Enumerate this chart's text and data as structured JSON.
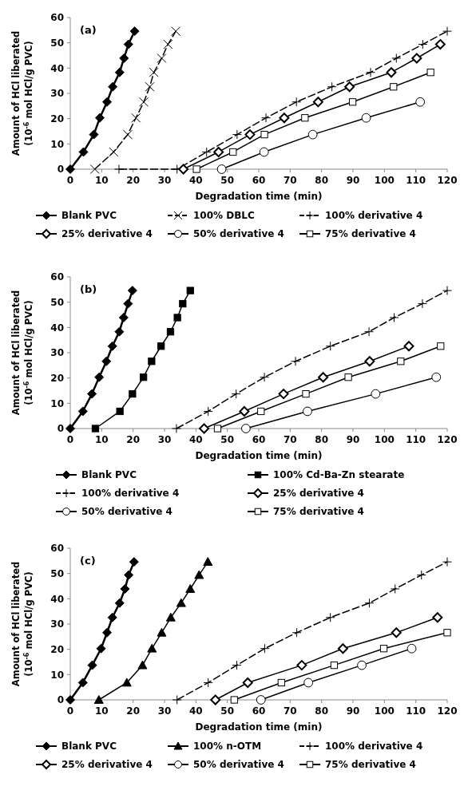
{
  "chart_data": [
    {
      "type": "line",
      "title": "(a)",
      "xlabel": "Degradation time (min)",
      "ylabel": "Amount of HCl liberated (10$^{-6}$ mol HCl/g PVC)",
      "xlim": [
        0,
        120
      ],
      "xticks": [
        0,
        10,
        20,
        30,
        40,
        50,
        60,
        70,
        80,
        90,
        100,
        110,
        120
      ],
      "ylim": [
        0,
        60
      ],
      "yticks": [
        0,
        10,
        20,
        30,
        40,
        50,
        60
      ],
      "legend": "bottom",
      "grid": false,
      "series": [
        {
          "name": "Blank PVC",
          "color": "#000000",
          "marker": "diamond",
          "line_style": "solid",
          "x": [
            0,
            4.2,
            7.5,
            9.4,
            11.7,
            13.5,
            15.7,
            17.1,
            18.5,
            20.5
          ],
          "values": [
            0,
            6.8,
            13.7,
            20.3,
            26.6,
            32.6,
            38.3,
            43.9,
            49.4,
            54.6
          ]
        },
        {
          "name": "100% DBLC",
          "color": "#000000",
          "marker": "x",
          "line_style": "dashed",
          "x": [
            7.8,
            13.8,
            18.3,
            20.9,
            23.4,
            25.3,
            26.6,
            29.1,
            31.1,
            33.6
          ],
          "values": [
            0,
            6.8,
            13.7,
            20.3,
            26.6,
            32.6,
            38.3,
            43.9,
            49.4,
            54.6
          ]
        },
        {
          "name": "100% derivative 4",
          "color": "#000000",
          "marker": "cross",
          "line_style": "dashed",
          "x": [
            15.5,
            34,
            43.4,
            53.1,
            62.3,
            72,
            83.3,
            95.6,
            103.8,
            112.2,
            120
          ],
          "values": [
            0,
            0,
            6.8,
            13.7,
            20.3,
            26.6,
            32.6,
            38.3,
            43.9,
            49.4,
            54.6
          ]
        },
        {
          "name": "25% derivative 4",
          "color": "#000000",
          "marker": "diamond",
          "line_style": "solid",
          "x": [
            36,
            47.2,
            57.2,
            68.1,
            78.9,
            88.9,
            102.2,
            110.3,
            117.8
          ],
          "values": [
            0,
            6.8,
            13.7,
            20.3,
            26.6,
            32.6,
            38.3,
            43.9,
            49.4
          ]
        },
        {
          "name": "50% derivative 4",
          "color": "#000000",
          "marker": "circle",
          "line_style": "solid",
          "x": [
            48.2,
            61.7,
            77.2,
            94.2,
            111.4
          ],
          "values": [
            0,
            6.8,
            13.7,
            20.3,
            26.6
          ]
        },
        {
          "name": "75% derivative 4",
          "color": "#000000",
          "marker": "square",
          "line_style": "solid",
          "x": [
            40.2,
            51.8,
            61.8,
            74.7,
            89.9,
            102.9,
            114.7
          ],
          "values": [
            0,
            6.8,
            13.7,
            20.3,
            26.6,
            32.6,
            38.3
          ]
        }
      ]
    },
    {
      "type": "line",
      "title": "(b)",
      "xlabel": "Degradation time (min)",
      "ylabel": "Amount of HCl liberated (10$^{-6}$ mol HCl/g PVC)",
      "xlim": [
        0,
        120
      ],
      "xticks": [
        0,
        10,
        20,
        30,
        40,
        50,
        60,
        70,
        80,
        90,
        100,
        110,
        120
      ],
      "ylim": [
        0,
        60
      ],
      "yticks": [
        0,
        10,
        20,
        30,
        40,
        50,
        60
      ],
      "legend": "bottom",
      "grid": false,
      "series": [
        {
          "name": "Blank PVC",
          "color": "#000000",
          "marker": "diamond",
          "line_style": "solid",
          "x": [
            0,
            4,
            6.9,
            9.2,
            11.5,
            13.4,
            15.6,
            17,
            18.4,
            19.8
          ],
          "values": [
            0,
            6.8,
            13.7,
            20.3,
            26.6,
            32.6,
            38.3,
            43.9,
            49.4,
            54.6
          ]
        },
        {
          "name": "100% Cd-Ba-Zn stearate",
          "color": "#000000",
          "marker": "square",
          "line_style": "solid",
          "x": [
            8,
            15.8,
            19.8,
            23.3,
            25.9,
            28.9,
            31.9,
            34.1,
            35.8,
            38.2
          ],
          "values": [
            0,
            6.8,
            13.7,
            20.3,
            26.6,
            32.6,
            38.3,
            43.9,
            49.4,
            54.6
          ]
        },
        {
          "name": "100% derivative 4",
          "color": "#000000",
          "marker": "cross",
          "line_style": "dashed",
          "x": [
            33.8,
            43.9,
            52.8,
            61.8,
            71.7,
            82.8,
            95.1,
            103.1,
            112.1,
            120
          ],
          "values": [
            0,
            6.8,
            13.7,
            20.3,
            26.6,
            32.6,
            38.3,
            43.9,
            49.4,
            54.6
          ]
        },
        {
          "name": "25% derivative 4",
          "color": "#000000",
          "marker": "diamond",
          "line_style": "solid",
          "x": [
            42.6,
            55.4,
            67.9,
            80.5,
            95.3,
            107.8
          ],
          "values": [
            0,
            6.8,
            13.7,
            20.3,
            26.6,
            32.6
          ]
        },
        {
          "name": "50% derivative 4",
          "color": "#000000",
          "marker": "circle",
          "line_style": "solid",
          "x": [
            55.9,
            75.5,
            97.2,
            116.5
          ],
          "values": [
            0,
            6.8,
            13.7,
            20.3
          ]
        },
        {
          "name": "75% derivative 4",
          "color": "#000000",
          "marker": "square",
          "line_style": "solid",
          "x": [
            46.9,
            60.7,
            75,
            88.5,
            105.2,
            117.9
          ],
          "values": [
            0,
            6.8,
            13.7,
            20.3,
            26.6,
            32.6
          ]
        }
      ]
    },
    {
      "type": "line",
      "title": "(c)",
      "xlabel": "Degradation time (min)",
      "ylabel": "Amount of HCl liberated (10$^{-6}$ mol HCl/g PVC)",
      "xlim": [
        0,
        120
      ],
      "xticks": [
        0,
        10,
        20,
        30,
        40,
        50,
        60,
        70,
        80,
        90,
        100,
        110,
        120
      ],
      "ylim": [
        0,
        60
      ],
      "yticks": [
        0,
        10,
        20,
        30,
        40,
        50,
        60
      ],
      "legend": "bottom",
      "grid": false,
      "series": [
        {
          "name": "Blank PVC",
          "color": "#000000",
          "marker": "diamond",
          "line_style": "solid",
          "x": [
            0,
            4,
            7,
            9.8,
            11.7,
            13.4,
            15.7,
            17.4,
            18.6,
            20.3
          ],
          "values": [
            0,
            6.8,
            13.7,
            20.3,
            26.6,
            32.6,
            38.3,
            43.9,
            49.4,
            54.6
          ]
        },
        {
          "name": "100% n-OTM",
          "color": "#000000",
          "marker": "triangle",
          "line_style": "solid",
          "x": [
            9.1,
            18,
            23,
            26,
            29.1,
            32,
            35.3,
            38.2,
            41,
            43.8
          ],
          "values": [
            0,
            6.8,
            13.7,
            20.3,
            26.6,
            32.6,
            38.3,
            43.9,
            49.4,
            54.6
          ]
        },
        {
          "name": "100% derivative 4",
          "color": "#000000",
          "marker": "cross",
          "line_style": "dashed",
          "x": [
            34,
            43.9,
            53,
            61.9,
            72.1,
            82.8,
            95.2,
            103.4,
            111.8,
            120
          ],
          "values": [
            0,
            6.8,
            13.7,
            20.3,
            26.6,
            32.6,
            38.3,
            43.9,
            49.4,
            54.6
          ]
        },
        {
          "name": "25% derivative 4",
          "color": "#000000",
          "marker": "diamond",
          "line_style": "solid",
          "x": [
            46.2,
            56.5,
            73.7,
            86.8,
            103.8,
            116.9
          ],
          "values": [
            0,
            6.8,
            13.7,
            20.3,
            26.6,
            32.6
          ]
        },
        {
          "name": "50% derivative 4",
          "color": "#000000",
          "marker": "circle",
          "line_style": "solid",
          "x": [
            60.7,
            75.8,
            92.8,
            108.7
          ],
          "values": [
            0,
            6.8,
            13.7,
            20.3
          ]
        },
        {
          "name": "75% derivative 4",
          "color": "#000000",
          "marker": "square",
          "line_style": "solid",
          "x": [
            52.2,
            67.2,
            84,
            99.8,
            120
          ],
          "values": [
            0,
            6.8,
            13.7,
            20.3,
            26.6
          ]
        }
      ]
    }
  ]
}
